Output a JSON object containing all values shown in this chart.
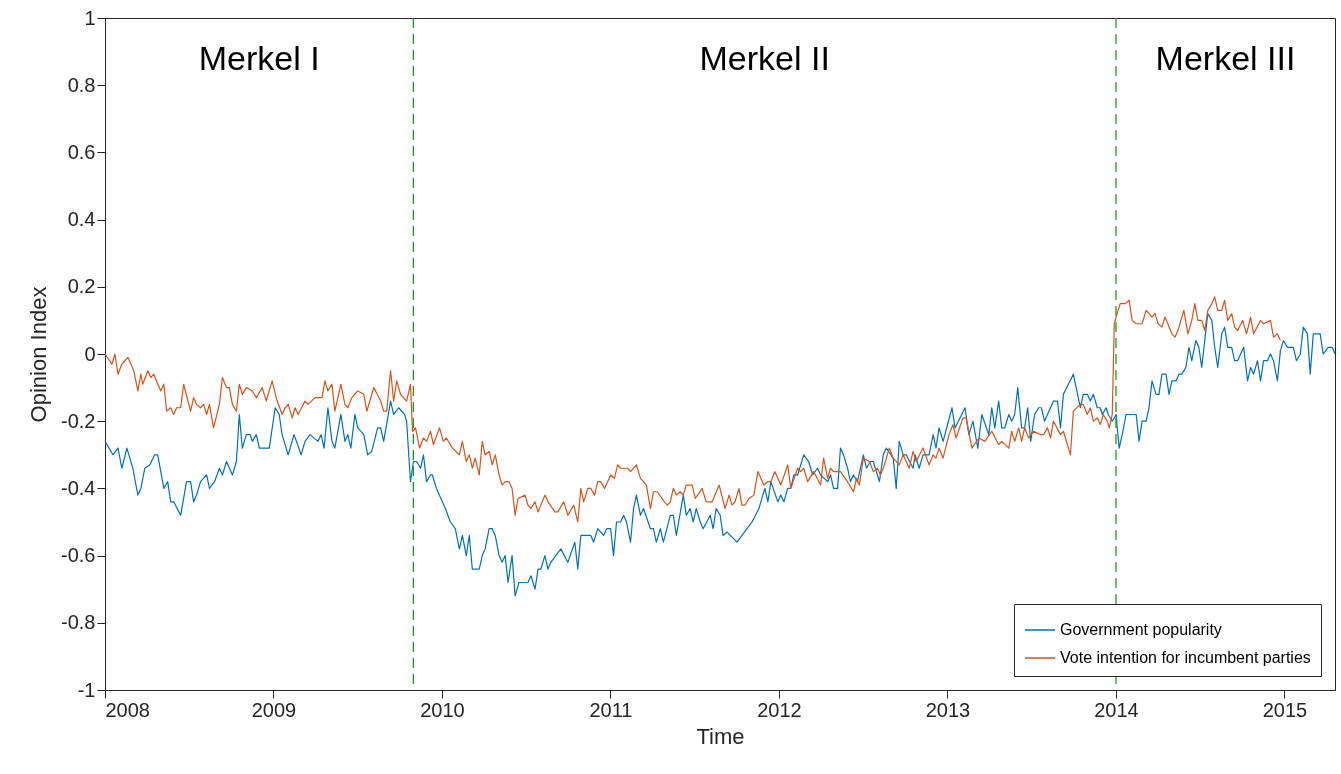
{
  "chart_data": {
    "type": "line",
    "xlabel": "Time",
    "ylabel": "Opinion Index",
    "xlim": [
      2008,
      2015.3
    ],
    "xticks": [
      2008,
      2009,
      2010,
      2011,
      2012,
      2013,
      2014,
      2015
    ],
    "ylim": [
      -1,
      1
    ],
    "yticks": [
      -1,
      -0.8,
      -0.6,
      -0.4,
      -0.2,
      0,
      0.2,
      0.4,
      0.6,
      0.8,
      1
    ],
    "legend": "bottom right",
    "ref_lines": [
      {
        "axis": "x",
        "value": 2009.83,
        "color": "#18a018",
        "line_style": "dashed"
      },
      {
        "axis": "x",
        "value": 2014.0,
        "color": "#18a018",
        "line_style": "dashed"
      }
    ],
    "annotations": [
      "Merkel I",
      "Merkel II",
      "Merkel III"
    ],
    "series": [
      {
        "name": "Government popularity",
        "color": "#0072bd",
        "x": [
          2008,
          2008.047,
          2008.077,
          2008.1,
          2008.13,
          2008.165,
          2008.195,
          2008.213,
          2008.236,
          2008.266,
          2008.295,
          2008.313,
          2008.349,
          2008.372,
          2008.39,
          2008.408,
          2008.449,
          2008.484,
          2008.508,
          2008.526,
          2008.543,
          2008.567,
          2008.603,
          2008.62,
          2008.65,
          2008.679,
          2008.697,
          2008.721,
          2008.756,
          2008.78,
          2008.797,
          2008.815,
          2008.839,
          2008.862,
          2008.874,
          2008.898,
          2008.916,
          2008.975,
          2009.01,
          2009.034,
          2009.051,
          2009.087,
          2009.122,
          2009.164,
          2009.187,
          2009.217,
          2009.264,
          2009.282,
          2009.3,
          2009.323,
          2009.347,
          2009.364,
          2009.4,
          2009.424,
          2009.441,
          2009.459,
          2009.483,
          2009.5,
          2009.536,
          2009.559,
          2009.583,
          2009.618,
          2009.636,
          2009.654,
          2009.695,
          2009.713,
          2009.743,
          2009.778,
          2009.79,
          2009.813,
          2009.831,
          2009.849,
          2009.873,
          2009.89,
          2009.908,
          2009.932,
          2009.943,
          2009.967,
          2010.02,
          2010.05,
          2010.079,
          2010.103,
          2010.121,
          2010.144,
          2010.162,
          2010.18,
          2010.221,
          2010.239,
          2010.256,
          2010.28,
          2010.298,
          2010.316,
          2010.339,
          2010.357,
          2010.375,
          2010.392,
          2010.416,
          2010.434,
          2010.457,
          2010.51,
          2010.528,
          2010.552,
          2010.57,
          2010.587,
          2010.611,
          2010.629,
          2010.646,
          2010.705,
          2010.747,
          2010.788,
          2010.806,
          2010.824,
          2010.883,
          2010.9,
          2010.924,
          2010.959,
          2010.977,
          2011.001,
          2011.018,
          2011.036,
          2011.06,
          2011.078,
          2011.095,
          2011.119,
          2011.137,
          2011.154,
          2011.178,
          2011.196,
          2011.237,
          2011.255,
          2011.272,
          2011.296,
          2011.314,
          2011.355,
          2011.373,
          2011.391,
          2011.432,
          2011.45,
          2011.473,
          2011.491,
          2011.509,
          2011.533,
          2011.55,
          2011.592,
          2011.609,
          2011.627,
          2011.651,
          2011.668,
          2011.692,
          2011.751,
          2011.81,
          2011.84,
          2011.881,
          2011.916,
          2011.934,
          2011.952,
          2011.993,
          2012.011,
          2012.029,
          2012.052,
          2012.07,
          2012.088,
          2012.111,
          2012.147,
          2012.176,
          2012.2,
          2012.229,
          2012.247,
          2012.289,
          2012.306,
          2012.324,
          2012.348,
          2012.365,
          2012.383,
          2012.407,
          2012.424,
          2012.442,
          2012.466,
          2012.501,
          2012.519,
          2012.542,
          2012.56,
          2012.596,
          2012.619,
          2012.637,
          2012.678,
          2012.696,
          2012.714,
          2012.737,
          2012.755,
          2012.796,
          2012.808,
          2012.832,
          2012.855,
          2012.891,
          2012.915,
          2012.932,
          2012.95,
          2012.974,
          2013.027,
          2013.045,
          2013.104,
          2013.127,
          2013.151,
          2013.18,
          2013.204,
          2013.245,
          2013.263,
          2013.281,
          2013.304,
          2013.322,
          2013.34,
          2013.364,
          2013.381,
          2013.399,
          2013.417,
          2013.44,
          2013.458,
          2013.476,
          2013.494,
          2013.517,
          2013.541,
          2013.558,
          2013.576,
          2013.629,
          2013.653,
          2013.671,
          2013.688,
          2013.747,
          2013.789,
          2013.806,
          2013.83,
          2013.848,
          2013.866,
          2013.889,
          2013.907,
          2013.919,
          2013.942,
          2013.954,
          2013.978,
          2014.001,
          2014.019,
          2014.037,
          2014.06,
          2014.12,
          2014.137,
          2014.155,
          2014.179,
          2014.196,
          2014.214,
          2014.238,
          2014.255,
          2014.273,
          2014.297,
          2014.315,
          2014.332,
          2014.356,
          2014.374,
          2014.391,
          2014.415,
          2014.433,
          2014.45,
          2014.474,
          2014.492,
          2014.509,
          2014.545,
          2014.569,
          2014.586,
          2014.604,
          2014.628,
          2014.645,
          2014.663,
          2014.687,
          2014.704,
          2014.722,
          2014.758,
          2014.781,
          2014.799,
          2014.817,
          2014.84,
          2014.858,
          2014.876,
          2014.899,
          2014.917,
          2014.935,
          2014.958,
          2014.976,
          2014.994,
          2015.017,
          2015.053,
          2015.071,
          2015.094,
          2015.112,
          2015.136,
          2015.153,
          2015.171,
          2015.212,
          2015.23,
          2015.26,
          2015.283,
          2015.3
        ],
        "values": [
          -0.26,
          -0.3,
          -0.28,
          -0.34,
          -0.28,
          -0.34,
          -0.42,
          -0.4,
          -0.34,
          -0.33,
          -0.3,
          -0.3,
          -0.4,
          -0.38,
          -0.44,
          -0.44,
          -0.48,
          -0.38,
          -0.38,
          -0.44,
          -0.42,
          -0.38,
          -0.36,
          -0.4,
          -0.38,
          -0.34,
          -0.36,
          -0.32,
          -0.36,
          -0.32,
          -0.18,
          -0.28,
          -0.24,
          -0.24,
          -0.26,
          -0.24,
          -0.28,
          -0.28,
          -0.16,
          -0.18,
          -0.24,
          -0.3,
          -0.24,
          -0.3,
          -0.26,
          -0.24,
          -0.26,
          -0.24,
          -0.28,
          -0.16,
          -0.26,
          -0.28,
          -0.18,
          -0.26,
          -0.24,
          -0.28,
          -0.18,
          -0.22,
          -0.24,
          -0.3,
          -0.29,
          -0.22,
          -0.22,
          -0.26,
          -0.14,
          -0.18,
          -0.16,
          -0.18,
          -0.2,
          -0.38,
          -0.32,
          -0.32,
          -0.34,
          -0.3,
          -0.38,
          -0.36,
          -0.36,
          -0.4,
          -0.46,
          -0.5,
          -0.52,
          -0.58,
          -0.54,
          -0.6,
          -0.54,
          -0.64,
          -0.64,
          -0.6,
          -0.58,
          -0.52,
          -0.52,
          -0.54,
          -0.6,
          -0.62,
          -0.6,
          -0.68,
          -0.6,
          -0.72,
          -0.68,
          -0.68,
          -0.66,
          -0.7,
          -0.64,
          -0.64,
          -0.6,
          -0.64,
          -0.62,
          -0.58,
          -0.62,
          -0.56,
          -0.64,
          -0.54,
          -0.54,
          -0.56,
          -0.52,
          -0.54,
          -0.52,
          -0.52,
          -0.6,
          -0.5,
          -0.5,
          -0.48,
          -0.5,
          -0.56,
          -0.46,
          -0.42,
          -0.48,
          -0.46,
          -0.52,
          -0.52,
          -0.56,
          -0.52,
          -0.56,
          -0.48,
          -0.48,
          -0.54,
          -0.42,
          -0.48,
          -0.46,
          -0.5,
          -0.46,
          -0.5,
          -0.52,
          -0.48,
          -0.52,
          -0.46,
          -0.48,
          -0.54,
          -0.53,
          -0.56,
          -0.52,
          -0.5,
          -0.46,
          -0.4,
          -0.44,
          -0.38,
          -0.44,
          -0.42,
          -0.44,
          -0.4,
          -0.4,
          -0.36,
          -0.36,
          -0.3,
          -0.32,
          -0.36,
          -0.34,
          -0.36,
          -0.38,
          -0.36,
          -0.4,
          -0.4,
          -0.28,
          -0.3,
          -0.34,
          -0.38,
          -0.36,
          -0.38,
          -0.3,
          -0.34,
          -0.32,
          -0.32,
          -0.38,
          -0.3,
          -0.28,
          -0.31,
          -0.4,
          -0.26,
          -0.3,
          -0.3,
          -0.34,
          -0.3,
          -0.34,
          -0.3,
          -0.3,
          -0.24,
          -0.28,
          -0.22,
          -0.26,
          -0.16,
          -0.22,
          -0.16,
          -0.24,
          -0.2,
          -0.28,
          -0.18,
          -0.24,
          -0.16,
          -0.22,
          -0.14,
          -0.22,
          -0.22,
          -0.18,
          -0.2,
          -0.18,
          -0.1,
          -0.22,
          -0.22,
          -0.16,
          -0.26,
          -0.18,
          -0.16,
          -0.16,
          -0.2,
          -0.14,
          -0.14,
          -0.22,
          -0.12,
          -0.06,
          -0.16,
          -0.12,
          -0.12,
          -0.14,
          -0.12,
          -0.16,
          -0.16,
          -0.18,
          -0.16,
          -0.18,
          -0.2,
          -0.18,
          -0.28,
          -0.24,
          -0.18,
          -0.18,
          -0.26,
          -0.2,
          -0.2,
          -0.16,
          -0.08,
          -0.12,
          -0.12,
          -0.06,
          -0.06,
          -0.12,
          -0.08,
          -0.08,
          -0.06,
          -0.06,
          -0.04,
          0.02,
          -0.02,
          0.04,
          0.02,
          -0.04,
          0.12,
          0.1,
          0.02,
          -0.04,
          0.06,
          0.08,
          0.02,
          0.02,
          -0.02,
          -0.02,
          0.02,
          -0.08,
          -0.04,
          -0.06,
          -0.02,
          -0.08,
          -0.02,
          -0.02,
          0,
          -0.02,
          -0.08,
          0.01,
          0.04,
          0.02,
          0.02,
          -0.02,
          0,
          0.08,
          0.06,
          -0.06,
          0.06,
          0.06,
          0,
          0.02,
          0.02,
          0
        ]
      },
      {
        "name": "Vote intention for incumbent parties",
        "color": "#d95319",
        "x": [
          2008,
          2008.041,
          2008.059,
          2008.077,
          2008.1,
          2008.136,
          2008.171,
          2008.195,
          2008.213,
          2008.224,
          2008.254,
          2008.272,
          2008.289,
          2008.331,
          2008.349,
          2008.366,
          2008.39,
          2008.408,
          2008.425,
          2008.449,
          2008.467,
          2008.508,
          2008.526,
          2008.543,
          2008.567,
          2008.585,
          2008.603,
          2008.62,
          2008.644,
          2008.679,
          2008.697,
          2008.721,
          2008.738,
          2008.756,
          2008.78,
          2008.797,
          2008.815,
          2008.839,
          2008.874,
          2008.898,
          2008.933,
          2008.957,
          2008.992,
          2009.016,
          2009.051,
          2009.069,
          2009.087,
          2009.111,
          2009.128,
          2009.146,
          2009.187,
          2009.205,
          2009.246,
          2009.288,
          2009.305,
          2009.323,
          2009.347,
          2009.364,
          2009.4,
          2009.424,
          2009.441,
          2009.465,
          2009.5,
          2009.536,
          2009.554,
          2009.595,
          2009.636,
          2009.654,
          2009.672,
          2009.695,
          2009.713,
          2009.731,
          2009.754,
          2009.79,
          2009.813,
          2009.825,
          2009.843,
          2009.867,
          2009.89,
          2009.908,
          2009.932,
          2009.949,
          2009.985,
          2010.008,
          2010.026,
          2010.062,
          2010.103,
          2010.121,
          2010.144,
          2010.162,
          2010.18,
          2010.197,
          2010.221,
          2010.239,
          2010.256,
          2010.28,
          2010.298,
          2010.316,
          2010.339,
          2010.357,
          2010.375,
          2010.398,
          2010.416,
          2010.434,
          2010.451,
          2010.493,
          2010.51,
          2010.528,
          2010.552,
          2010.57,
          2010.611,
          2010.629,
          2010.67,
          2010.688,
          2010.723,
          2010.747,
          2010.782,
          2010.806,
          2010.824,
          2010.841,
          2010.865,
          2010.883,
          2010.906,
          2010.924,
          2010.942,
          2010.965,
          2011.001,
          2011.024,
          2011.042,
          2011.06,
          2011.101,
          2011.119,
          2011.154,
          2011.178,
          2011.213,
          2011.237,
          2011.255,
          2011.278,
          2011.32,
          2011.337,
          2011.355,
          2011.373,
          2011.391,
          2011.414,
          2011.432,
          2011.45,
          2011.485,
          2011.503,
          2011.544,
          2011.568,
          2011.603,
          2011.645,
          2011.68,
          2011.704,
          2011.721,
          2011.739,
          2011.763,
          2011.78,
          2011.798,
          2011.822,
          2011.851,
          2011.875,
          2011.91,
          2011.934,
          2011.952,
          2011.975,
          2012.011,
          2012.052,
          2012.07,
          2012.111,
          2012.129,
          2012.147,
          2012.17,
          2012.206,
          2012.247,
          2012.265,
          2012.289,
          2012.306,
          2012.324,
          2012.365,
          2012.407,
          2012.442,
          2012.46,
          2012.477,
          2012.501,
          2012.537,
          2012.56,
          2012.584,
          2012.602,
          2012.619,
          2012.655,
          2012.678,
          2012.714,
          2012.737,
          2012.773,
          2012.796,
          2012.814,
          2012.855,
          2012.891,
          2012.915,
          2012.932,
          2012.95,
          2012.974,
          2013.009,
          2013.033,
          2013.051,
          2013.092,
          2013.11,
          2013.145,
          2013.186,
          2013.222,
          2013.263,
          2013.304,
          2013.322,
          2013.364,
          2013.381,
          2013.399,
          2013.423,
          2013.44,
          2013.458,
          2013.482,
          2013.511,
          2013.553,
          2013.57,
          2013.594,
          2013.612,
          2013.629,
          2013.671,
          2013.688,
          2013.73,
          2013.747,
          2013.789,
          2013.806,
          2013.83,
          2013.848,
          2013.866,
          2013.889,
          2013.907,
          2013.925,
          2013.948,
          2013.96,
          2013.978,
          2013.99,
          2014.007,
          2014.025,
          2014.055,
          2014.078,
          2014.096,
          2014.12,
          2014.155,
          2014.179,
          2014.196,
          2014.214,
          2014.232,
          2014.25,
          2014.273,
          2014.291,
          2014.332,
          2014.35,
          2014.368,
          2014.403,
          2014.427,
          2014.45,
          2014.468,
          2014.486,
          2014.509,
          2014.527,
          2014.545,
          2014.569,
          2014.586,
          2014.604,
          2014.628,
          2014.645,
          2014.663,
          2014.687,
          2014.704,
          2014.722,
          2014.752,
          2014.775,
          2014.799,
          2014.817,
          2014.858,
          2014.876,
          2014.917,
          2014.935,
          2014.958,
          2014.976
        ],
        "values": [
          0,
          -0.03,
          0,
          -0.06,
          -0.03,
          -0.01,
          -0.05,
          -0.11,
          -0.06,
          -0.09,
          -0.05,
          -0.07,
          -0.06,
          -0.11,
          -0.09,
          -0.17,
          -0.16,
          -0.18,
          -0.16,
          -0.16,
          -0.09,
          -0.17,
          -0.13,
          -0.15,
          -0.16,
          -0.15,
          -0.18,
          -0.15,
          -0.22,
          -0.15,
          -0.07,
          -0.1,
          -0.1,
          -0.15,
          -0.17,
          -0.09,
          -0.12,
          -0.1,
          -0.11,
          -0.13,
          -0.1,
          -0.14,
          -0.08,
          -0.13,
          -0.18,
          -0.16,
          -0.15,
          -0.19,
          -0.16,
          -0.18,
          -0.14,
          -0.15,
          -0.13,
          -0.13,
          -0.08,
          -0.11,
          -0.09,
          -0.17,
          -0.09,
          -0.15,
          -0.16,
          -0.13,
          -0.11,
          -0.12,
          -0.17,
          -0.1,
          -0.14,
          -0.17,
          -0.17,
          -0.05,
          -0.14,
          -0.08,
          -0.12,
          -0.14,
          -0.09,
          -0.23,
          -0.22,
          -0.28,
          -0.25,
          -0.26,
          -0.23,
          -0.27,
          -0.22,
          -0.26,
          -0.25,
          -0.28,
          -0.3,
          -0.26,
          -0.32,
          -0.3,
          -0.34,
          -0.31,
          -0.36,
          -0.26,
          -0.3,
          -0.29,
          -0.33,
          -0.3,
          -0.36,
          -0.39,
          -0.38,
          -0.38,
          -0.4,
          -0.48,
          -0.43,
          -0.42,
          -0.45,
          -0.46,
          -0.44,
          -0.47,
          -0.42,
          -0.44,
          -0.47,
          -0.47,
          -0.44,
          -0.48,
          -0.45,
          -0.5,
          -0.4,
          -0.44,
          -0.4,
          -0.4,
          -0.42,
          -0.38,
          -0.38,
          -0.4,
          -0.36,
          -0.37,
          -0.33,
          -0.34,
          -0.34,
          -0.35,
          -0.33,
          -0.37,
          -0.39,
          -0.46,
          -0.41,
          -0.41,
          -0.44,
          -0.45,
          -0.44,
          -0.4,
          -0.42,
          -0.41,
          -0.42,
          -0.39,
          -0.39,
          -0.43,
          -0.4,
          -0.44,
          -0.44,
          -0.39,
          -0.46,
          -0.42,
          -0.45,
          -0.44,
          -0.4,
          -0.45,
          -0.45,
          -0.43,
          -0.42,
          -0.35,
          -0.39,
          -0.38,
          -0.38,
          -0.35,
          -0.39,
          -0.33,
          -0.4,
          -0.34,
          -0.35,
          -0.34,
          -0.38,
          -0.35,
          -0.39,
          -0.31,
          -0.37,
          -0.34,
          -0.35,
          -0.35,
          -0.38,
          -0.41,
          -0.37,
          -0.39,
          -0.31,
          -0.32,
          -0.35,
          -0.34,
          -0.36,
          -0.34,
          -0.28,
          -0.31,
          -0.33,
          -0.3,
          -0.34,
          -0.29,
          -0.32,
          -0.28,
          -0.33,
          -0.3,
          -0.31,
          -0.28,
          -0.31,
          -0.24,
          -0.21,
          -0.25,
          -0.19,
          -0.19,
          -0.28,
          -0.25,
          -0.26,
          -0.23,
          -0.27,
          -0.26,
          -0.28,
          -0.23,
          -0.26,
          -0.22,
          -0.26,
          -0.22,
          -0.25,
          -0.23,
          -0.24,
          -0.24,
          -0.22,
          -0.25,
          -0.2,
          -0.24,
          -0.23,
          -0.3,
          -0.17,
          -0.15,
          -0.15,
          -0.18,
          -0.16,
          -0.2,
          -0.19,
          -0.21,
          -0.18,
          -0.2,
          -0.22,
          -0.18,
          0.09,
          0.12,
          0.15,
          0.15,
          0.16,
          0.1,
          0.09,
          0.09,
          0.13,
          0.12,
          0.11,
          0.12,
          0.09,
          0.08,
          0.11,
          0.06,
          0.05,
          0.07,
          0.13,
          0.06,
          0.1,
          0.15,
          0.1,
          0.1,
          0.07,
          0.13,
          0.15,
          0.17,
          0.13,
          0.13,
          0.16,
          0.1,
          0.12,
          0.08,
          0.07,
          0.1,
          0.06,
          0.11,
          0.06,
          0.1,
          0.09,
          0.1,
          0.05,
          0.06,
          0.04
        ]
      }
    ]
  }
}
